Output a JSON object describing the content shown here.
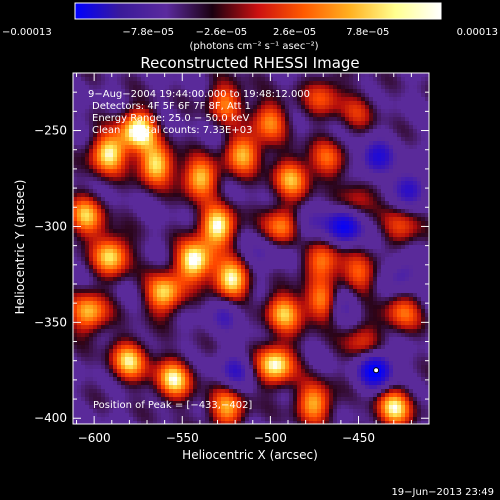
{
  "chart_data": {
    "type": "heatmap",
    "title": "Reconstructed RHESSI Image",
    "xlabel": "Heliocentric X (arcsec)",
    "ylabel": "Heliocentric Y (arcsec)",
    "xlim": [
      -612,
      -410
    ],
    "ylim": [
      -403,
      -220
    ],
    "xticks": [
      -600,
      -550,
      -500,
      -450
    ],
    "xtick_labels": [
      "−600",
      "−550",
      "−500",
      "−450"
    ],
    "yticks": [
      -250,
      -300,
      -350,
      -400
    ],
    "ytick_labels": [
      "−250",
      "−300",
      "−350",
      "−400"
    ],
    "colorbar": {
      "range": [
        -0.00013,
        0.00013
      ],
      "tick_labels": [
        "−0.00013",
        "−7.8e−05",
        "−2.6e−05",
        "2.6e−05",
        "7.8e−05",
        "0.00013"
      ],
      "units_label": "(photons cm⁻² s⁻¹ asec⁻²)",
      "stops": [
        "#0000ff",
        "#3a1a9a",
        "#5b2a9e",
        "#1a0010",
        "#cc1010",
        "#ff5a00",
        "#ffb020",
        "#ffff90",
        "#ffffff"
      ]
    },
    "annotations": [
      "9−Aug−2004 19:44:00.000 to 19:48:12.000",
      "Detectors: 4F 5F 6F 7F 8F, Att 1",
      "Energy Range: 25.0 − 50.0 keV",
      "Clean     Total counts: 7.33E+03"
    ],
    "peak_label": "Position of Peak = [−433,−402]",
    "footer_timestamp": "19−Jun−2013 23:49",
    "sources": [
      {
        "x": -575,
        "y": -250,
        "amp": 1.0
      },
      {
        "x": -592,
        "y": -262,
        "amp": 0.9
      },
      {
        "x": -565,
        "y": -268,
        "amp": 0.85
      },
      {
        "x": -540,
        "y": -275,
        "amp": 0.8
      },
      {
        "x": -515,
        "y": -262,
        "amp": 0.75
      },
      {
        "x": -500,
        "y": -245,
        "amp": 0.6
      },
      {
        "x": -488,
        "y": -275,
        "amp": 0.7
      },
      {
        "x": -530,
        "y": -300,
        "amp": 0.95
      },
      {
        "x": -543,
        "y": -318,
        "amp": 1.0
      },
      {
        "x": -522,
        "y": -328,
        "amp": 0.95
      },
      {
        "x": -560,
        "y": -335,
        "amp": 0.85
      },
      {
        "x": -590,
        "y": -315,
        "amp": 0.85
      },
      {
        "x": -605,
        "y": -295,
        "amp": 0.75
      },
      {
        "x": -603,
        "y": -345,
        "amp": 0.8
      },
      {
        "x": -580,
        "y": -370,
        "amp": 0.8
      },
      {
        "x": -555,
        "y": -380,
        "amp": 0.85
      },
      {
        "x": -525,
        "y": -395,
        "amp": 0.7
      },
      {
        "x": -497,
        "y": -372,
        "amp": 0.95
      },
      {
        "x": -475,
        "y": -392,
        "amp": 0.75
      },
      {
        "x": -493,
        "y": -300,
        "amp": 0.7
      },
      {
        "x": -470,
        "y": -318,
        "amp": 0.65
      },
      {
        "x": -470,
        "y": -340,
        "amp": 0.7
      },
      {
        "x": -492,
        "y": -345,
        "amp": 0.75
      },
      {
        "x": -468,
        "y": -265,
        "amp": 0.5
      },
      {
        "x": -450,
        "y": -285,
        "amp": 0.4
      },
      {
        "x": -425,
        "y": -300,
        "amp": 0.45
      },
      {
        "x": -450,
        "y": -325,
        "amp": 0.55
      },
      {
        "x": -425,
        "y": -345,
        "amp": 0.55
      },
      {
        "x": -448,
        "y": -360,
        "amp": 0.45
      },
      {
        "x": -430,
        "y": -395,
        "amp": 0.85
      },
      {
        "x": -450,
        "y": -240,
        "amp": 0.35
      },
      {
        "x": -525,
        "y": -235,
        "amp": 0.6
      },
      {
        "x": -470,
        "y": -232,
        "amp": 0.5
      }
    ],
    "negative_sources": [
      {
        "x": -458,
        "y": -300,
        "amp": 0.9
      },
      {
        "x": -440,
        "y": -265,
        "amp": 0.7
      },
      {
        "x": -420,
        "y": -280,
        "amp": 0.6
      },
      {
        "x": -440,
        "y": -375,
        "amp": 1.0
      },
      {
        "x": -425,
        "y": -325,
        "amp": 0.45
      },
      {
        "x": -460,
        "y": -340,
        "amp": 0.5
      },
      {
        "x": -480,
        "y": -300,
        "amp": 0.4
      },
      {
        "x": -505,
        "y": -315,
        "amp": 0.35
      },
      {
        "x": -525,
        "y": -345,
        "amp": 0.4
      },
      {
        "x": -520,
        "y": -375,
        "amp": 0.45
      }
    ]
  }
}
